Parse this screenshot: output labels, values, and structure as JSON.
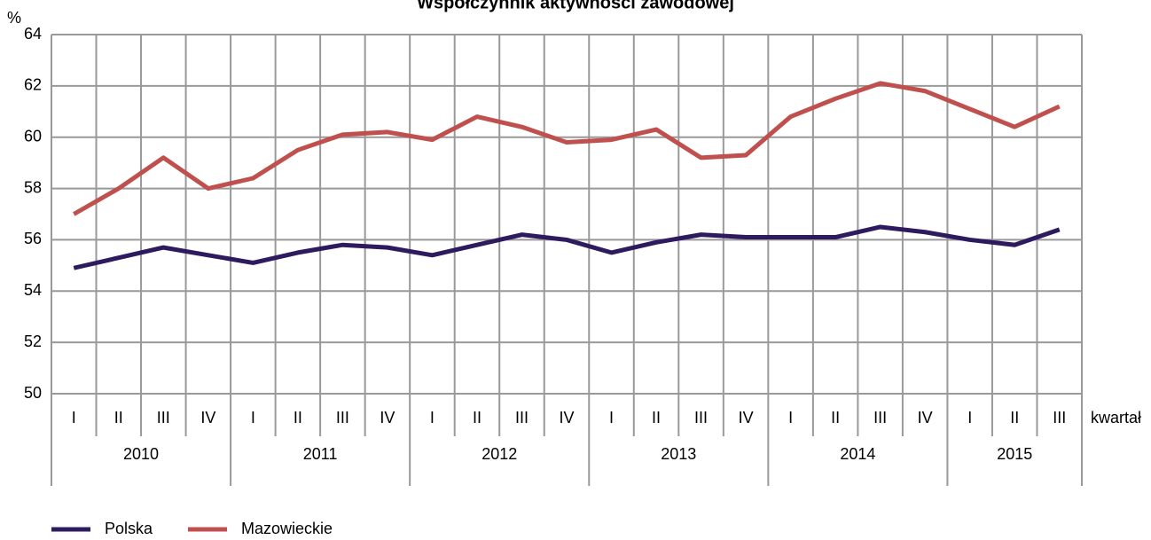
{
  "chart_data": {
    "type": "line",
    "title": "Współczynnik aktywności zawodowej",
    "y_label": "%",
    "x_label": "kwartał",
    "categories": [
      "I",
      "II",
      "III",
      "IV",
      "I",
      "II",
      "III",
      "IV",
      "I",
      "II",
      "III",
      "IV",
      "I",
      "II",
      "III",
      "IV",
      "I",
      "II",
      "III",
      "IV",
      "I",
      "II",
      "III"
    ],
    "groups": [
      {
        "label": "2010",
        "count": 4
      },
      {
        "label": "2011",
        "count": 4
      },
      {
        "label": "2012",
        "count": 4
      },
      {
        "label": "2013",
        "count": 4
      },
      {
        "label": "2014",
        "count": 4
      },
      {
        "label": "2015",
        "count": 3
      }
    ],
    "series": [
      {
        "name": "Polska",
        "color": "#2e1a5e",
        "values": [
          54.9,
          55.3,
          55.7,
          55.4,
          55.1,
          55.5,
          55.8,
          55.7,
          55.4,
          55.8,
          56.2,
          56.0,
          55.5,
          55.9,
          56.2,
          56.1,
          56.1,
          56.1,
          56.5,
          56.3,
          56.0,
          55.8,
          56.4
        ]
      },
      {
        "name": "Mazowieckie",
        "color": "#c0504d",
        "values": [
          57.0,
          58.0,
          59.2,
          58.0,
          58.4,
          59.5,
          60.1,
          60.2,
          59.9,
          60.8,
          60.4,
          59.8,
          59.9,
          60.3,
          59.2,
          59.3,
          60.8,
          61.5,
          62.1,
          61.8,
          61.1,
          60.4,
          61.2
        ]
      }
    ],
    "ylim": [
      50,
      64
    ],
    "yticks": [
      50,
      52,
      54,
      56,
      58,
      60,
      62,
      64
    ],
    "grid": true,
    "legend": "bottom"
  }
}
